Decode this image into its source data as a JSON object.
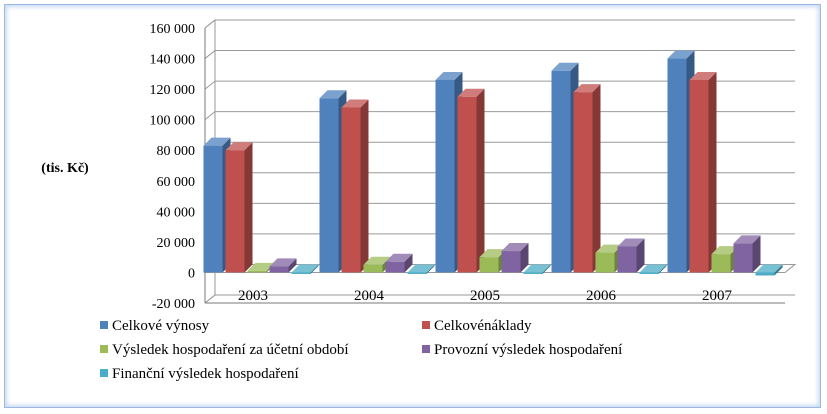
{
  "chart_data": {
    "type": "bar",
    "three_d": true,
    "ylabel": "(tis. Kč)",
    "xlabel": "",
    "categories": [
      "2003",
      "2004",
      "2005",
      "2006",
      "2007"
    ],
    "ylim": [
      -20000,
      160000
    ],
    "yticks": [
      -20000,
      0,
      20000,
      40000,
      60000,
      80000,
      100000,
      120000,
      140000,
      160000
    ],
    "ytick_labels": [
      "-20 000",
      "0",
      "20 000",
      "40 000",
      "60 000",
      "80 000",
      "100 000",
      "120 000",
      "140 000",
      "160 000"
    ],
    "grid": true,
    "legend_position": "bottom",
    "series": [
      {
        "name": "Celkové výnosy",
        "color": "#4f81bd",
        "values": [
          83000,
          114000,
          126000,
          132000,
          140000
        ]
      },
      {
        "name": "Celkovénáklady",
        "color": "#c0504d",
        "values": [
          80000,
          108000,
          115000,
          118000,
          126000
        ]
      },
      {
        "name": "Výsledek hospodaření za účetní období",
        "color": "#9bbb59",
        "values": [
          1000,
          5000,
          10000,
          13000,
          12000
        ]
      },
      {
        "name": "Provozní výsledek  hospodaření",
        "color": "#8064a2",
        "values": [
          4000,
          7000,
          14000,
          17000,
          19000
        ]
      },
      {
        "name": "Finanční výsledek hospodaření",
        "color": "#4bacc6",
        "values": [
          -1000,
          -500,
          -1000,
          -1000,
          -2000
        ]
      }
    ]
  }
}
